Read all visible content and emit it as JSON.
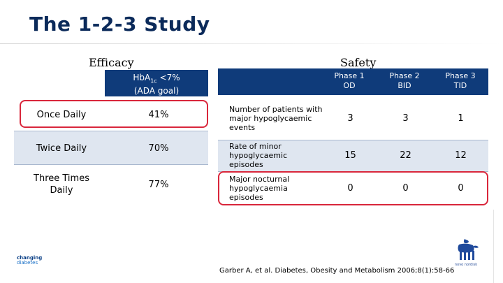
{
  "title": "The 1-2-3 Study",
  "efficacy": {
    "label": "Efficacy",
    "header_line1": "HbA",
    "header_sub": "1c",
    "header_tail": " <7%",
    "header_line2": "(ADA goal)",
    "rows": [
      {
        "label": "Once Daily",
        "value": "41%"
      },
      {
        "label": "Twice Daily",
        "value": "70%"
      },
      {
        "label": "Three Times Daily",
        "value": "77%"
      }
    ]
  },
  "safety": {
    "label": "Safety",
    "columns": [
      {
        "line1": "Phase 1",
        "line2": "OD"
      },
      {
        "line1": "Phase 2",
        "line2": "BID"
      },
      {
        "line1": "Phase 3",
        "line2": "TID"
      }
    ],
    "rows": [
      {
        "label": "Number of patients with major hypoglycaemic events",
        "values": [
          "3",
          "3",
          "1"
        ]
      },
      {
        "label": "Rate of minor hypoglycaemic episodes",
        "values": [
          "15",
          "22",
          "12"
        ]
      },
      {
        "label": "Major nocturnal hypoglycaemia episodes",
        "values": [
          "0",
          "0",
          "0"
        ]
      }
    ]
  },
  "citation": "Garber A, et al. Diabetes, Obesity and Metabolism 2006;8(1):58-66",
  "logos": {
    "left_line1": "changing",
    "left_line2": "diabetes",
    "right_brand": "novo nordisk"
  },
  "colors": {
    "header_blue": "#0f3b7a",
    "highlight_red": "#d9263b",
    "row_shade": "#dfe6f0"
  }
}
